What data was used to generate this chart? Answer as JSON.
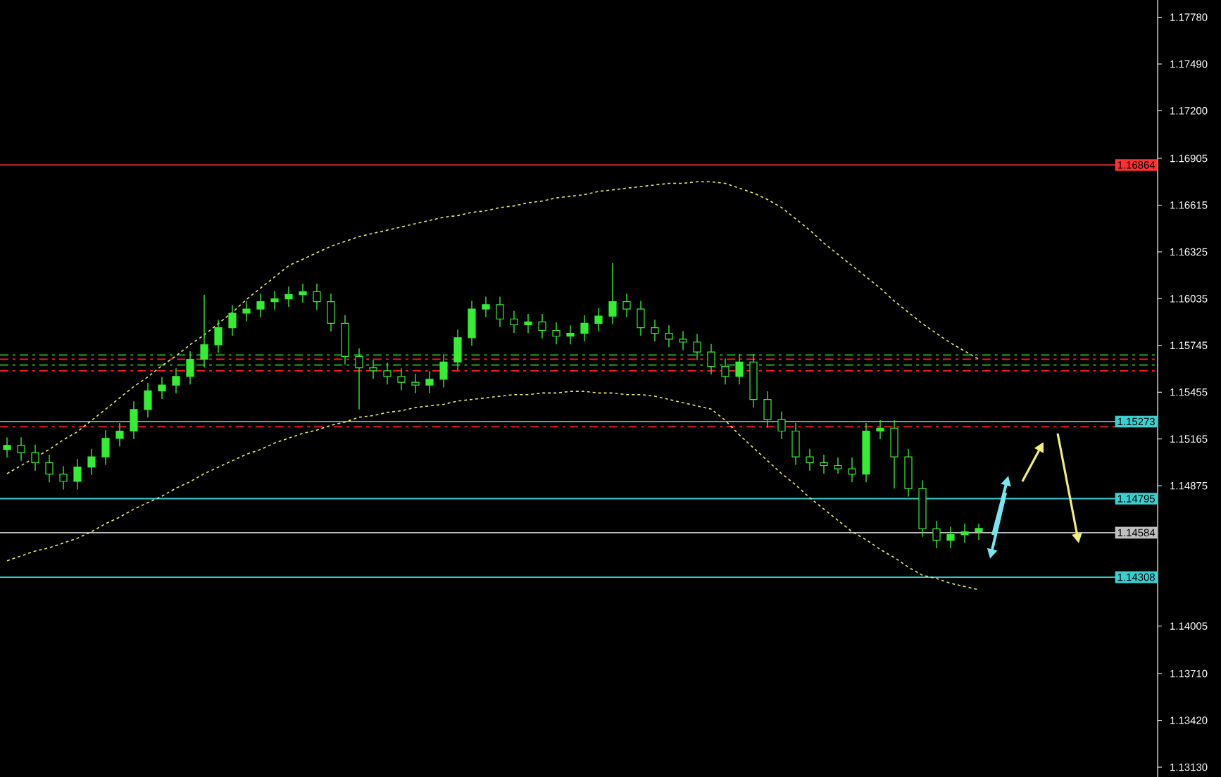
{
  "chart_data": {
    "type": "candlestick",
    "categories": [
      null,
      null,
      null,
      null,
      null,
      null,
      null,
      null,
      null,
      null,
      null,
      null,
      null,
      null,
      null,
      null,
      null,
      null,
      null,
      null,
      null,
      null,
      null,
      null,
      null,
      null,
      null,
      null,
      null,
      null,
      null,
      null,
      null,
      null,
      null,
      null,
      null,
      null,
      null,
      null,
      null,
      null,
      null,
      null,
      null,
      null,
      null,
      null,
      null,
      null,
      null,
      null,
      null,
      null,
      null,
      null,
      null,
      null,
      null,
      null,
      null,
      null,
      null,
      null,
      null,
      null,
      null,
      null,
      null,
      null
    ],
    "color": "#33ee33",
    "ohlc": [
      [
        1.151,
        1.15175,
        1.1505,
        1.15125
      ],
      [
        1.15125,
        1.15175,
        1.1503,
        1.1508
      ],
      [
        1.1508,
        1.1513,
        1.14968,
        1.15018
      ],
      [
        1.15018,
        1.15068,
        1.14897,
        1.14947
      ],
      [
        1.14947,
        1.14997,
        1.14852,
        1.14902
      ],
      [
        1.14902,
        1.15041,
        1.14852,
        1.14991
      ],
      [
        1.14991,
        1.15104,
        1.14941,
        1.15054
      ],
      [
        1.15054,
        1.15219,
        1.15004,
        1.15169
      ],
      [
        1.15169,
        1.15264,
        1.15119,
        1.15214
      ],
      [
        1.15214,
        1.15398,
        1.15164,
        1.15348
      ],
      [
        1.15348,
        1.15513,
        1.15298,
        1.15463
      ],
      [
        1.15463,
        1.15549,
        1.15413,
        1.15499
      ],
      [
        1.15499,
        1.15603,
        1.15449,
        1.15553
      ],
      [
        1.15553,
        1.15709,
        1.15503,
        1.15659
      ],
      [
        1.15659,
        1.1606,
        1.15609,
        1.15749
      ],
      [
        1.15749,
        1.15905,
        1.15699,
        1.15855
      ],
      [
        1.15855,
        1.15995,
        1.15805,
        1.15945
      ],
      [
        1.15945,
        1.16021,
        1.15895,
        1.15971
      ],
      [
        1.15971,
        1.16066,
        1.15921,
        1.16016
      ],
      [
        1.16016,
        1.16084,
        1.15966,
        1.16034
      ],
      [
        1.16034,
        1.1611,
        1.15984,
        1.1606
      ],
      [
        1.1606,
        1.16128,
        1.1601,
        1.16078
      ],
      [
        1.16078,
        1.16128,
        1.15966,
        1.16016
      ],
      [
        1.16016,
        1.16066,
        1.15832,
        1.15882
      ],
      [
        1.15882,
        1.15932,
        1.15627,
        1.15677
      ],
      [
        1.15677,
        1.15727,
        1.15348,
        1.15606
      ],
      [
        1.15606,
        1.15656,
        1.15538,
        1.15588
      ],
      [
        1.15588,
        1.15638,
        1.15503,
        1.15553
      ],
      [
        1.15553,
        1.15603,
        1.15467,
        1.15517
      ],
      [
        1.15517,
        1.15567,
        1.15449,
        1.15499
      ],
      [
        1.15499,
        1.15585,
        1.15449,
        1.15535
      ],
      [
        1.15535,
        1.15692,
        1.15485,
        1.15642
      ],
      [
        1.15642,
        1.15843,
        1.15592,
        1.15793
      ],
      [
        1.15793,
        1.16021,
        1.15743,
        1.15971
      ],
      [
        1.15971,
        1.16048,
        1.15921,
        1.15998
      ],
      [
        1.15998,
        1.16048,
        1.15859,
        1.15909
      ],
      [
        1.15909,
        1.15959,
        1.15823,
        1.15873
      ],
      [
        1.15873,
        1.15941,
        1.15823,
        1.15891
      ],
      [
        1.15891,
        1.15941,
        1.15788,
        1.15838
      ],
      [
        1.15838,
        1.15888,
        1.15752,
        1.15802
      ],
      [
        1.15802,
        1.1587,
        1.15752,
        1.1582
      ],
      [
        1.1582,
        1.15932,
        1.1577,
        1.15882
      ],
      [
        1.15882,
        1.15977,
        1.15832,
        1.15927
      ],
      [
        1.15927,
        1.16256,
        1.15877,
        1.16016
      ],
      [
        1.16016,
        1.16066,
        1.15921,
        1.15971
      ],
      [
        1.15971,
        1.16021,
        1.15805,
        1.15855
      ],
      [
        1.15855,
        1.15905,
        1.1577,
        1.1582
      ],
      [
        1.1582,
        1.1587,
        1.15734,
        1.15784
      ],
      [
        1.15784,
        1.15834,
        1.15716,
        1.15766
      ],
      [
        1.15766,
        1.15816,
        1.15654,
        1.15704
      ],
      [
        1.15704,
        1.15754,
        1.15565,
        1.15615
      ],
      [
        1.15615,
        1.15665,
        1.15503,
        1.15553
      ],
      [
        1.15553,
        1.15692,
        1.15503,
        1.15642
      ],
      [
        1.15642,
        1.15692,
        1.1536,
        1.1541
      ],
      [
        1.1541,
        1.1546,
        1.15235,
        1.15285
      ],
      [
        1.15285,
        1.15335,
        1.15164,
        1.15214
      ],
      [
        1.15214,
        1.15264,
        1.15004,
        1.15054
      ],
      [
        1.15054,
        1.15104,
        1.14968,
        1.15018
      ],
      [
        1.15018,
        1.15068,
        1.1495,
        1.15
      ],
      [
        1.15,
        1.1505,
        1.1495,
        1.1498
      ],
      [
        1.1498,
        1.1505,
        1.14897,
        1.14947
      ],
      [
        1.14947,
        1.15264,
        1.14897,
        1.15214
      ],
      [
        1.15214,
        1.15282,
        1.15164,
        1.15232
      ],
      [
        1.15232,
        1.15282,
        1.14858,
        1.15054
      ],
      [
        1.15054,
        1.15104,
        1.14808,
        1.14858
      ],
      [
        1.14858,
        1.14908,
        1.14558,
        1.14608
      ],
      [
        1.14608,
        1.14658,
        1.14487,
        1.14537
      ],
      [
        1.14537,
        1.14622,
        1.14487,
        1.14572
      ],
      [
        1.14572,
        1.1464,
        1.14522,
        1.1459
      ],
      [
        1.1459,
        1.1464,
        1.1454,
        1.1461
      ]
    ],
    "series": [
      {
        "type": "line",
        "color": "#e8e870",
        "line_style": "dotted",
        "values": [
          1.1495,
          1.15,
          1.1505,
          1.151,
          1.1516,
          1.1521,
          1.1528,
          1.1535,
          1.1542,
          1.1549,
          1.1555,
          1.1562,
          1.1568,
          1.1575,
          1.1581,
          1.1588,
          1.1595,
          1.1603,
          1.161,
          1.1617,
          1.1624,
          1.1628,
          1.1632,
          1.1636,
          1.1639,
          1.1642,
          1.1644,
          1.1646,
          1.1648,
          1.165,
          1.1652,
          1.1654,
          1.1655,
          1.1657,
          1.1658,
          1.166,
          1.1661,
          1.1663,
          1.1664,
          1.1666,
          1.1667,
          1.1668,
          1.167,
          1.1671,
          1.1672,
          1.1673,
          1.1674,
          1.1675,
          1.1675,
          1.1676,
          1.1676,
          1.1675,
          1.1672,
          1.1669,
          1.1665,
          1.166,
          1.1653,
          1.1646,
          1.1638,
          1.1631,
          1.1624,
          1.1617,
          1.161,
          1.1602,
          1.1595,
          1.1588,
          1.1582,
          1.1576,
          1.1571,
          1.1566
        ]
      },
      {
        "type": "line",
        "color": "#e8e870",
        "line_style": "dotted",
        "values": [
          1.1441,
          1.1444,
          1.1447,
          1.1449,
          1.1452,
          1.1455,
          1.1459,
          1.1464,
          1.1468,
          1.1473,
          1.1477,
          1.1481,
          1.1486,
          1.149,
          1.1495,
          1.1499,
          1.1503,
          1.1507,
          1.151,
          1.1514,
          1.1517,
          1.152,
          1.1522,
          1.1525,
          1.1527,
          1.153,
          1.1531,
          1.1533,
          1.1534,
          1.1536,
          1.1537,
          1.1538,
          1.154,
          1.1541,
          1.1542,
          1.1543,
          1.1544,
          1.1544,
          1.1545,
          1.1545,
          1.1546,
          1.1546,
          1.1545,
          1.1545,
          1.1544,
          1.1544,
          1.1543,
          1.1541,
          1.1539,
          1.1537,
          1.1535,
          1.1528,
          1.1519,
          1.1511,
          1.1503,
          1.1495,
          1.1488,
          1.148,
          1.1473,
          1.1466,
          1.1459,
          1.1454,
          1.1448,
          1.1443,
          1.1437,
          1.1432,
          1.143,
          1.1427,
          1.1425,
          1.1423
        ]
      }
    ],
    "ylim": [
      1.13069,
      1.17887
    ],
    "yticks": [
      {
        "value": 1.1778,
        "label": "1.17780"
      },
      {
        "value": 1.1749,
        "label": "1.17490"
      },
      {
        "value": 1.172,
        "label": "1.17200"
      },
      {
        "value": 1.16905,
        "label": "1.16905"
      },
      {
        "value": 1.16615,
        "label": "1.16615"
      },
      {
        "value": 1.16325,
        "label": "1.16325"
      },
      {
        "value": 1.16035,
        "label": "1.16035"
      },
      {
        "value": 1.15745,
        "label": "1.15745"
      },
      {
        "value": 1.15455,
        "label": "1.15455"
      },
      {
        "value": 1.15165,
        "label": "1.15165"
      },
      {
        "value": 1.14875,
        "label": "1.14875"
      },
      {
        "value": 1.14005,
        "label": "1.14005"
      },
      {
        "value": 1.1371,
        "label": "1.13710"
      },
      {
        "value": 1.1342,
        "label": "1.13420"
      },
      {
        "value": 1.1313,
        "label": "1.13130"
      }
    ],
    "ref_lines": [
      {
        "axis": "y",
        "value": 1.16864,
        "label": "1.16864",
        "color": "#ff3030",
        "line_style": "solid"
      },
      {
        "axis": "y",
        "value": 1.15273,
        "label": "1.15273",
        "color": "#3ad0d0",
        "line_style": "solid"
      },
      {
        "axis": "y",
        "value": 1.14795,
        "label": "1.14795",
        "color": "#3ad0d0",
        "line_style": "solid"
      },
      {
        "axis": "y",
        "value": 1.14584,
        "label": "1.14584",
        "color": "#c0c0c0",
        "line_style": "solid"
      },
      {
        "axis": "y",
        "value": 1.14308,
        "label": "1.14308",
        "color": "#3ad0d0",
        "line_style": "solid"
      },
      {
        "axis": "y",
        "value": 1.15686,
        "color": "#20c020",
        "line_style": "dashed"
      },
      {
        "axis": "y",
        "value": 1.1566,
        "color": "#ff2020",
        "line_style": "dashed"
      },
      {
        "axis": "y",
        "value": 1.15624,
        "color": "#20c020",
        "line_style": "dashed"
      },
      {
        "axis": "y",
        "value": 1.15588,
        "color": "#ff2020",
        "line_style": "dashed"
      },
      {
        "axis": "y",
        "value": 1.15241,
        "color": "#ff2020",
        "line_style": "dashed"
      }
    ],
    "tick_labels": "y"
  }
}
